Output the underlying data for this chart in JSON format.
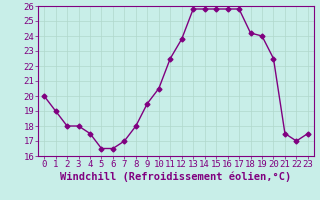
{
  "hours": [
    0,
    1,
    2,
    3,
    4,
    5,
    6,
    7,
    8,
    9,
    10,
    11,
    12,
    13,
    14,
    15,
    16,
    17,
    18,
    19,
    20,
    21,
    22,
    23
  ],
  "values": [
    20.0,
    19.0,
    18.0,
    18.0,
    17.5,
    16.5,
    16.5,
    17.0,
    18.0,
    19.5,
    20.5,
    22.5,
    23.8,
    25.8,
    25.8,
    25.8,
    25.8,
    25.8,
    24.2,
    24.0,
    22.5,
    17.5,
    17.0,
    17.5
  ],
  "color": "#800080",
  "bg_color": "#c8eee8",
  "grid_color": "#b0d8cc",
  "xlabel": "Windchill (Refroidissement éolien,°C)",
  "ylim": [
    16,
    26
  ],
  "xlim_min": -0.5,
  "xlim_max": 23.5,
  "yticks": [
    16,
    17,
    18,
    19,
    20,
    21,
    22,
    23,
    24,
    25,
    26
  ],
  "xticks": [
    0,
    1,
    2,
    3,
    4,
    5,
    6,
    7,
    8,
    9,
    10,
    11,
    12,
    13,
    14,
    15,
    16,
    17,
    18,
    19,
    20,
    21,
    22,
    23
  ],
  "marker": "D",
  "markersize": 2.5,
  "linewidth": 1.0,
  "tick_fontsize": 6.5,
  "xlabel_fontsize": 7.5
}
